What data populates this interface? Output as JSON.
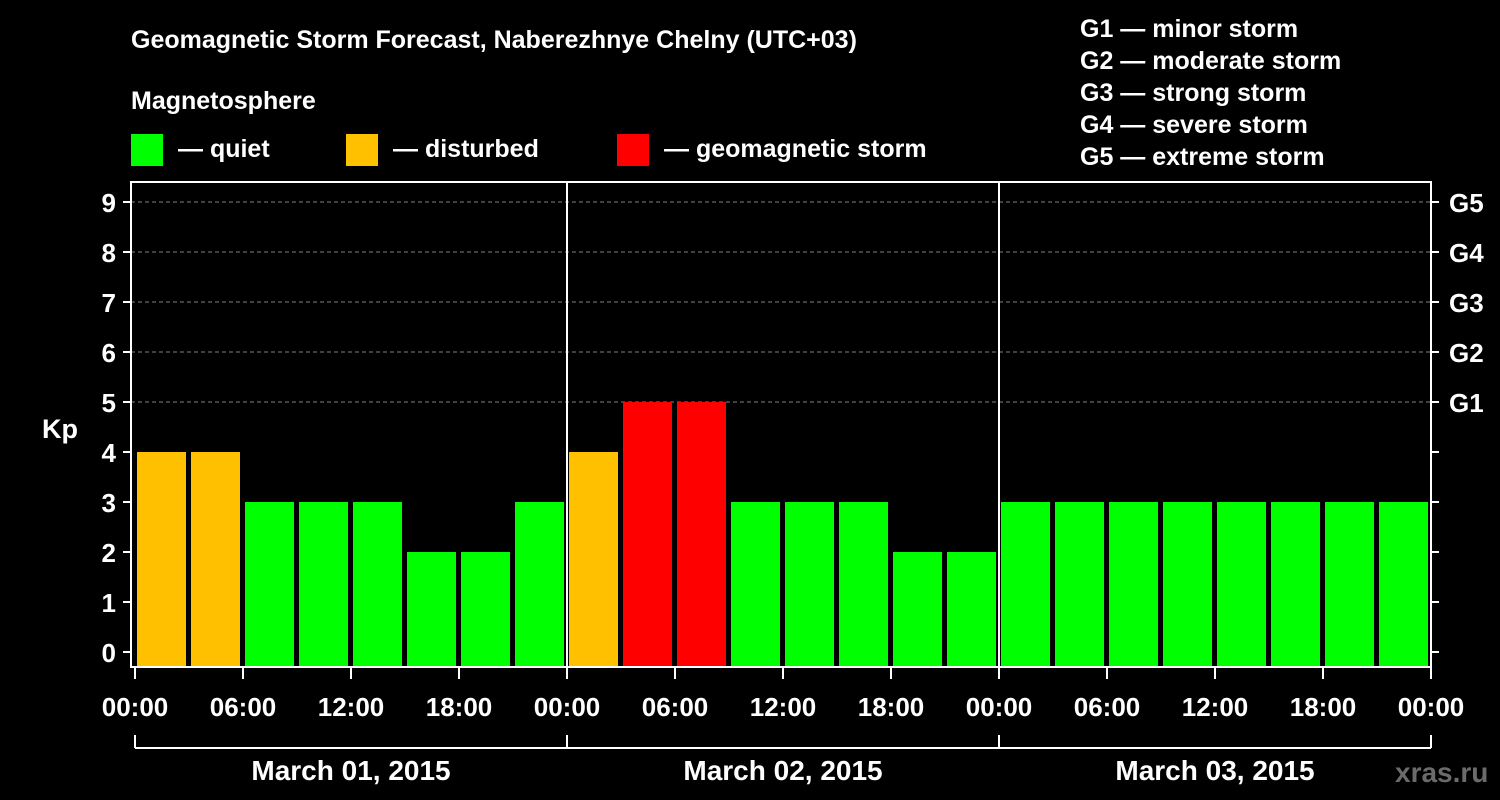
{
  "chart_data": {
    "type": "bar",
    "title": "Geomagnetic Storm Forecast, Naberezhnye Chelny (UTC+03)",
    "legend_title": "Magnetosphere",
    "legend": [
      {
        "label": "— quiet",
        "color": "#00ff00"
      },
      {
        "label": "— disturbed",
        "color": "#ffc000"
      },
      {
        "label": "— geomagnetic storm",
        "color": "#ff0000"
      }
    ],
    "storm_scale": [
      "G1 — minor storm",
      "G2 — moderate storm",
      "G3 — strong storm",
      "G4 — severe storm",
      "G5 — extreme storm"
    ],
    "ylabel": "Kp",
    "ylim": [
      0,
      9
    ],
    "yticks": [
      "0",
      "1",
      "2",
      "3",
      "4",
      "5",
      "6",
      "7",
      "8",
      "9"
    ],
    "right_ticks": [
      {
        "kp": 5,
        "label": "G1"
      },
      {
        "kp": 6,
        "label": "G2"
      },
      {
        "kp": 7,
        "label": "G3"
      },
      {
        "kp": 8,
        "label": "G4"
      },
      {
        "kp": 9,
        "label": "G5"
      }
    ],
    "hours_per_bar": 3,
    "days": [
      {
        "label": "March 01, 2015",
        "values": [
          4,
          4,
          3,
          3,
          3,
          2,
          2,
          3
        ]
      },
      {
        "label": "March 02, 2015",
        "values": [
          4,
          5,
          5,
          3,
          3,
          3,
          2,
          2
        ]
      },
      {
        "label": "March 03, 2015",
        "values": [
          3,
          3,
          3,
          3,
          3,
          3,
          3,
          3
        ]
      }
    ],
    "xtick_labels": [
      "00:00",
      "06:00",
      "12:00",
      "18:00",
      "00:00",
      "06:00",
      "12:00",
      "18:00",
      "00:00",
      "06:00",
      "12:00",
      "18:00",
      "00:00"
    ],
    "thresholds": {
      "disturbed": 4,
      "storm": 5
    },
    "colors": {
      "quiet": "#00ff00",
      "disturbed": "#ffc000",
      "storm": "#ff0000",
      "axis": "#ffffff",
      "grid": "#808080",
      "background": "#000000"
    },
    "watermark": "xras.ru"
  }
}
